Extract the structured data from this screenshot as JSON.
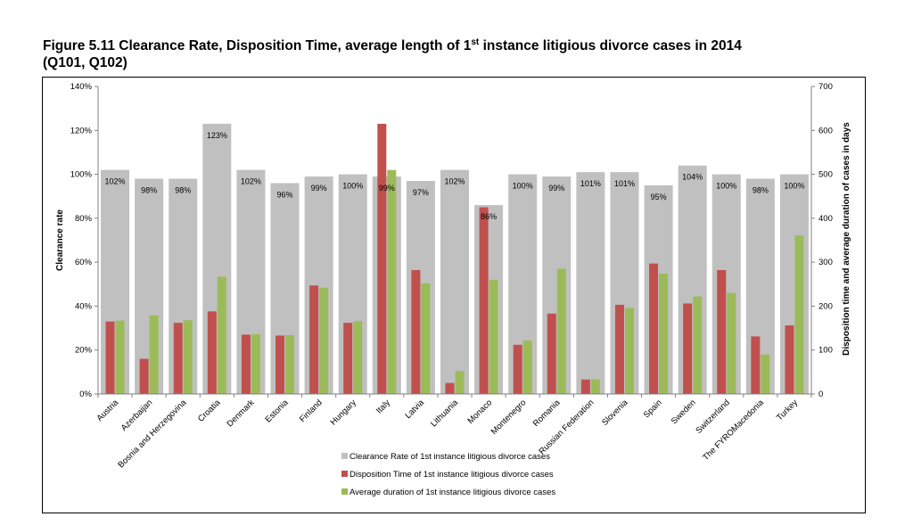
{
  "title": {
    "line1_pre": "Figure 5.11 Clearance Rate, Disposition Time, average length of 1",
    "line1_sup": "st",
    "line1_post": " instance litigious divorce cases in 2014",
    "line2": "(Q101, Q102)"
  },
  "chart_data": {
    "type": "bar",
    "categories": [
      "Austria",
      "Azerbaijan",
      "Bosnia and Herzegovina",
      "Croatia",
      "Denmark",
      "Estonia",
      "Finland",
      "Hungary",
      "Italy",
      "Latvia",
      "Lithuania",
      "Monaco",
      "Montenegro",
      "Romania",
      "Russian Federation",
      "Slovenia",
      "Spain",
      "Sweden",
      "Switzerland",
      "The FYROMacedonia",
      "Turkey"
    ],
    "series": [
      {
        "name": "Clearance Rate of 1st instance litigious divorce cases",
        "axis": "left",
        "color": "#c0c0c0",
        "values": [
          102,
          98,
          98,
          123,
          102,
          96,
          99,
          100,
          99,
          97,
          102,
          86,
          100,
          99,
          101,
          101,
          95,
          104,
          100,
          98,
          100
        ]
      },
      {
        "name": "Disposition Time  of 1st instance litigious divorce cases",
        "axis": "right",
        "color": "#c0504d",
        "values": [
          165,
          80,
          162,
          188,
          135,
          133,
          247,
          162,
          615,
          282,
          25,
          425,
          112,
          183,
          33,
          203,
          297,
          206,
          282,
          131,
          156
        ]
      },
      {
        "name": "Average duration of 1st instance litigious divorce cases",
        "axis": "right",
        "color": "#9bbb59",
        "values": [
          167,
          179,
          168,
          267,
          136,
          134,
          242,
          166,
          510,
          252,
          52,
          260,
          122,
          285,
          33,
          196,
          274,
          222,
          230,
          90,
          361
        ]
      }
    ],
    "data_labels": [
      "102%",
      "98%",
      "98%",
      "123%",
      "102%",
      "96%",
      "99%",
      "100%",
      "99%",
      "97%",
      "102%",
      "86%",
      "100%",
      "99%",
      "101%",
      "101%",
      "95%",
      "104%",
      "100%",
      "98%",
      "100%"
    ],
    "ylabel": "Clearance rate",
    "y2label": "Disposition  time and average duration of cases in days",
    "ylim": [
      0,
      140
    ],
    "yticks": [
      "0%",
      "20%",
      "40%",
      "60%",
      "80%",
      "100%",
      "120%",
      "140%"
    ],
    "y2lim": [
      0,
      700
    ],
    "y2ticks": [
      "0",
      "100",
      "200",
      "300",
      "400",
      "500",
      "600",
      "700"
    ],
    "legend_position": "bottom",
    "grid": false
  },
  "colors": {
    "clearance": "#c0c0c0",
    "disposition": "#c0504d",
    "duration": "#9bbb59",
    "axis": "#808080"
  }
}
